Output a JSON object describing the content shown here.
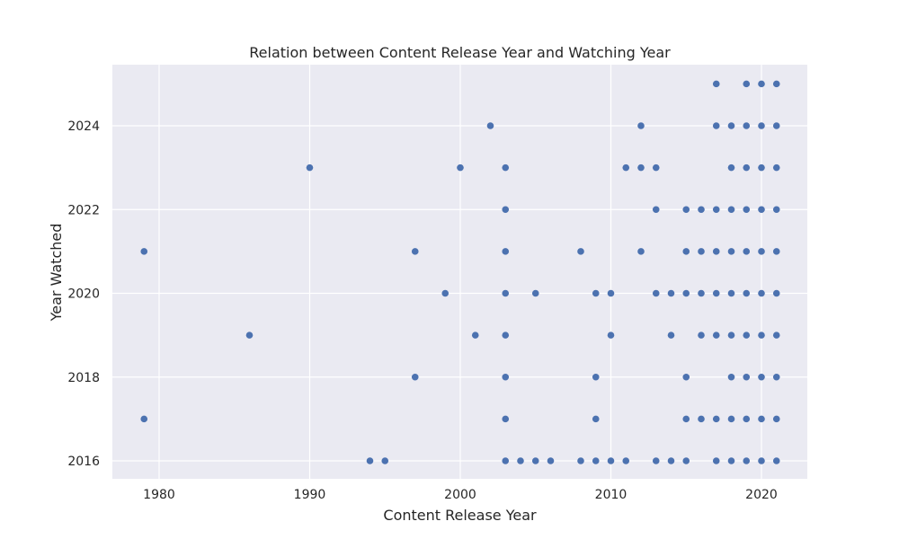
{
  "chart_data": {
    "type": "scatter",
    "title": "Relation between Content Release Year and Watching Year",
    "xlabel": "Content Release Year",
    "ylabel": "Year Watched",
    "xlim": [
      1977,
      2023
    ],
    "ylim": [
      2015.5,
      2025.5
    ],
    "xticks": [
      1980,
      1990,
      2000,
      2010,
      2020
    ],
    "yticks": [
      2016,
      2018,
      2020,
      2022,
      2024
    ],
    "grid": true,
    "background_color": "#EAEAF2",
    "grid_color": "#FFFFFF",
    "marker_color": "#4C72B0",
    "points": [
      {
        "x": 2017,
        "y": 2025
      },
      {
        "x": 2019,
        "y": 2025
      },
      {
        "x": 2020,
        "y": 2025
      },
      {
        "x": 2021,
        "y": 2025
      },
      {
        "x": 2002,
        "y": 2024
      },
      {
        "x": 2012,
        "y": 2024
      },
      {
        "x": 2017,
        "y": 2024
      },
      {
        "x": 2018,
        "y": 2024
      },
      {
        "x": 2019,
        "y": 2024
      },
      {
        "x": 2020,
        "y": 2024
      },
      {
        "x": 2021,
        "y": 2024
      },
      {
        "x": 1990,
        "y": 2023
      },
      {
        "x": 2000,
        "y": 2023
      },
      {
        "x": 2003,
        "y": 2023
      },
      {
        "x": 2011,
        "y": 2023
      },
      {
        "x": 2012,
        "y": 2023
      },
      {
        "x": 2013,
        "y": 2023
      },
      {
        "x": 2018,
        "y": 2023
      },
      {
        "x": 2019,
        "y": 2023
      },
      {
        "x": 2020,
        "y": 2023
      },
      {
        "x": 2021,
        "y": 2023
      },
      {
        "x": 2003,
        "y": 2022
      },
      {
        "x": 2013,
        "y": 2022
      },
      {
        "x": 2015,
        "y": 2022
      },
      {
        "x": 2016,
        "y": 2022
      },
      {
        "x": 2017,
        "y": 2022
      },
      {
        "x": 2018,
        "y": 2022
      },
      {
        "x": 2019,
        "y": 2022
      },
      {
        "x": 2020,
        "y": 2022
      },
      {
        "x": 2021,
        "y": 2022
      },
      {
        "x": 1979,
        "y": 2021
      },
      {
        "x": 1997,
        "y": 2021
      },
      {
        "x": 2003,
        "y": 2021
      },
      {
        "x": 2008,
        "y": 2021
      },
      {
        "x": 2012,
        "y": 2021
      },
      {
        "x": 2015,
        "y": 2021
      },
      {
        "x": 2016,
        "y": 2021
      },
      {
        "x": 2017,
        "y": 2021
      },
      {
        "x": 2018,
        "y": 2021
      },
      {
        "x": 2019,
        "y": 2021
      },
      {
        "x": 2020,
        "y": 2021
      },
      {
        "x": 2021,
        "y": 2021
      },
      {
        "x": 1999,
        "y": 2020
      },
      {
        "x": 2003,
        "y": 2020
      },
      {
        "x": 2005,
        "y": 2020
      },
      {
        "x": 2009,
        "y": 2020
      },
      {
        "x": 2010,
        "y": 2020
      },
      {
        "x": 2013,
        "y": 2020
      },
      {
        "x": 2014,
        "y": 2020
      },
      {
        "x": 2015,
        "y": 2020
      },
      {
        "x": 2016,
        "y": 2020
      },
      {
        "x": 2017,
        "y": 2020
      },
      {
        "x": 2018,
        "y": 2020
      },
      {
        "x": 2019,
        "y": 2020
      },
      {
        "x": 2020,
        "y": 2020
      },
      {
        "x": 2021,
        "y": 2020
      },
      {
        "x": 1986,
        "y": 2019
      },
      {
        "x": 2001,
        "y": 2019
      },
      {
        "x": 2003,
        "y": 2019
      },
      {
        "x": 2010,
        "y": 2019
      },
      {
        "x": 2014,
        "y": 2019
      },
      {
        "x": 2016,
        "y": 2019
      },
      {
        "x": 2017,
        "y": 2019
      },
      {
        "x": 2018,
        "y": 2019
      },
      {
        "x": 2019,
        "y": 2019
      },
      {
        "x": 2020,
        "y": 2019
      },
      {
        "x": 2021,
        "y": 2019
      },
      {
        "x": 1997,
        "y": 2018
      },
      {
        "x": 2003,
        "y": 2018
      },
      {
        "x": 2009,
        "y": 2018
      },
      {
        "x": 2015,
        "y": 2018
      },
      {
        "x": 2018,
        "y": 2018
      },
      {
        "x": 2019,
        "y": 2018
      },
      {
        "x": 2020,
        "y": 2018
      },
      {
        "x": 2021,
        "y": 2018
      },
      {
        "x": 1979,
        "y": 2017
      },
      {
        "x": 2003,
        "y": 2017
      },
      {
        "x": 2009,
        "y": 2017
      },
      {
        "x": 2015,
        "y": 2017
      },
      {
        "x": 2016,
        "y": 2017
      },
      {
        "x": 2017,
        "y": 2017
      },
      {
        "x": 2018,
        "y": 2017
      },
      {
        "x": 2019,
        "y": 2017
      },
      {
        "x": 2020,
        "y": 2017
      },
      {
        "x": 2021,
        "y": 2017
      },
      {
        "x": 1994,
        "y": 2016
      },
      {
        "x": 1995,
        "y": 2016
      },
      {
        "x": 2003,
        "y": 2016
      },
      {
        "x": 2004,
        "y": 2016
      },
      {
        "x": 2005,
        "y": 2016
      },
      {
        "x": 2006,
        "y": 2016
      },
      {
        "x": 2008,
        "y": 2016
      },
      {
        "x": 2009,
        "y": 2016
      },
      {
        "x": 2010,
        "y": 2016
      },
      {
        "x": 2011,
        "y": 2016
      },
      {
        "x": 2013,
        "y": 2016
      },
      {
        "x": 2014,
        "y": 2016
      },
      {
        "x": 2015,
        "y": 2016
      },
      {
        "x": 2017,
        "y": 2016
      },
      {
        "x": 2018,
        "y": 2016
      },
      {
        "x": 2019,
        "y": 2016
      },
      {
        "x": 2020,
        "y": 2016
      },
      {
        "x": 2021,
        "y": 2016
      }
    ]
  }
}
